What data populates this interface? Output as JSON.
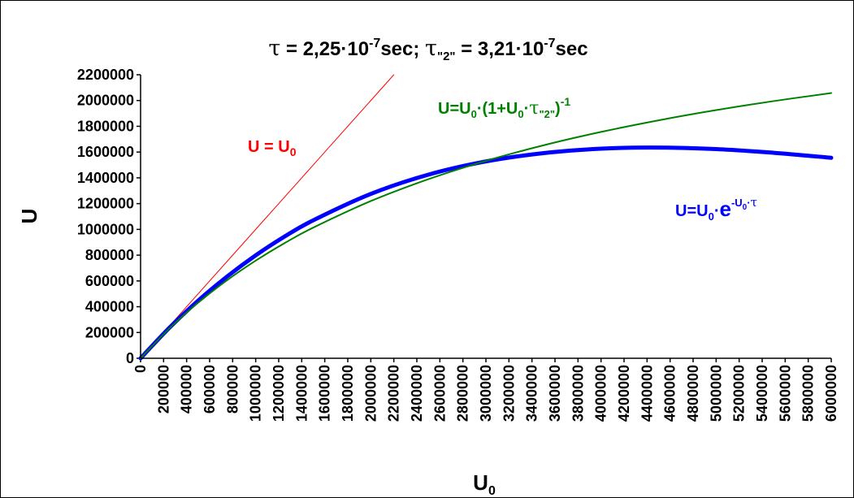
{
  "chart_data": {
    "type": "line",
    "title": {
      "tau_symbol": "τ",
      "tau_value": " = 2,25·10",
      "tau_exp": "-7",
      "tau_unit": "sec; ",
      "tau2_symbol": "τ",
      "tau2_sub": "\"2\"",
      "tau2_value": " = 3,21·10",
      "tau2_exp": "-7",
      "tau2_unit": "sec"
    },
    "xlabel": {
      "main": "U",
      "sub": "0"
    },
    "ylabel": "U",
    "xlim": [
      0,
      6000000
    ],
    "ylim": [
      0,
      2200000
    ],
    "x_ticks": [
      "0",
      "200000",
      "400000",
      "600000",
      "800000",
      "1000000",
      "1200000",
      "1400000",
      "1600000",
      "1800000",
      "2000000",
      "2200000",
      "2400000",
      "2600000",
      "2800000",
      "3000000",
      "3200000",
      "3400000",
      "3600000",
      "3800000",
      "4000000",
      "4200000",
      "4400000",
      "4600000",
      "4800000",
      "5000000",
      "5200000",
      "5400000",
      "5600000",
      "5800000",
      "6000000"
    ],
    "y_ticks": [
      "0",
      "200000",
      "400000",
      "600000",
      "800000",
      "1000000",
      "1200000",
      "1400000",
      "1600000",
      "1800000",
      "2000000",
      "2200000"
    ],
    "series": [
      {
        "key": "linear",
        "color": "#ff0000",
        "x": [
          0,
          500000,
          1000000,
          1500000,
          2000000,
          2200000
        ],
        "y": [
          0,
          500000,
          1000000,
          1500000,
          2000000,
          2200000
        ]
      },
      {
        "key": "hyperbolic",
        "color": "#008000",
        "x": [
          0,
          250000,
          500000,
          750000,
          1000000,
          1250000,
          1500000,
          2000000,
          2500000,
          3000000,
          3500000,
          4000000,
          4500000,
          5000000,
          5500000,
          6000000
        ],
        "y": [
          0,
          231410,
          430940,
          604750,
          757580,
          893000,
          1013780,
          1219900,
          1389550,
          1531630,
          1652340,
          1756150,
          1846400,
          1925570,
          1995580,
          2057940
        ]
      },
      {
        "key": "exponential",
        "color": "#0000ff",
        "x": [
          0,
          250000,
          500000,
          750000,
          1000000,
          1250000,
          1500000,
          2000000,
          2500000,
          3000000,
          3500000,
          4000000,
          4444444,
          5000000,
          5500000,
          6000000
        ],
        "y": [
          0,
          236330,
          446660,
          633200,
          798530,
          943720,
          1070490,
          1275260,
          1424800,
          1527380,
          1591740,
          1626260,
          1635010,
          1623400,
          1594420,
          1555700
        ]
      }
    ],
    "annotations": {
      "linear": {
        "text": "U = U",
        "sub": "0"
      },
      "hyperbolic": {
        "a": "U=U",
        "sub1": "0",
        "b": "·(1+U",
        "sub2": "0",
        "c": "·",
        "tau": "τ",
        "sub3": "\"2\"",
        "d": ")",
        "exp": "-1"
      },
      "exponential": {
        "a": "U=U",
        "sub1": "0",
        "b": "·",
        "e": "e",
        "exp_a": "-U",
        "exp_sub": "0",
        "exp_b": "·",
        "exp_tau": "τ"
      }
    }
  }
}
